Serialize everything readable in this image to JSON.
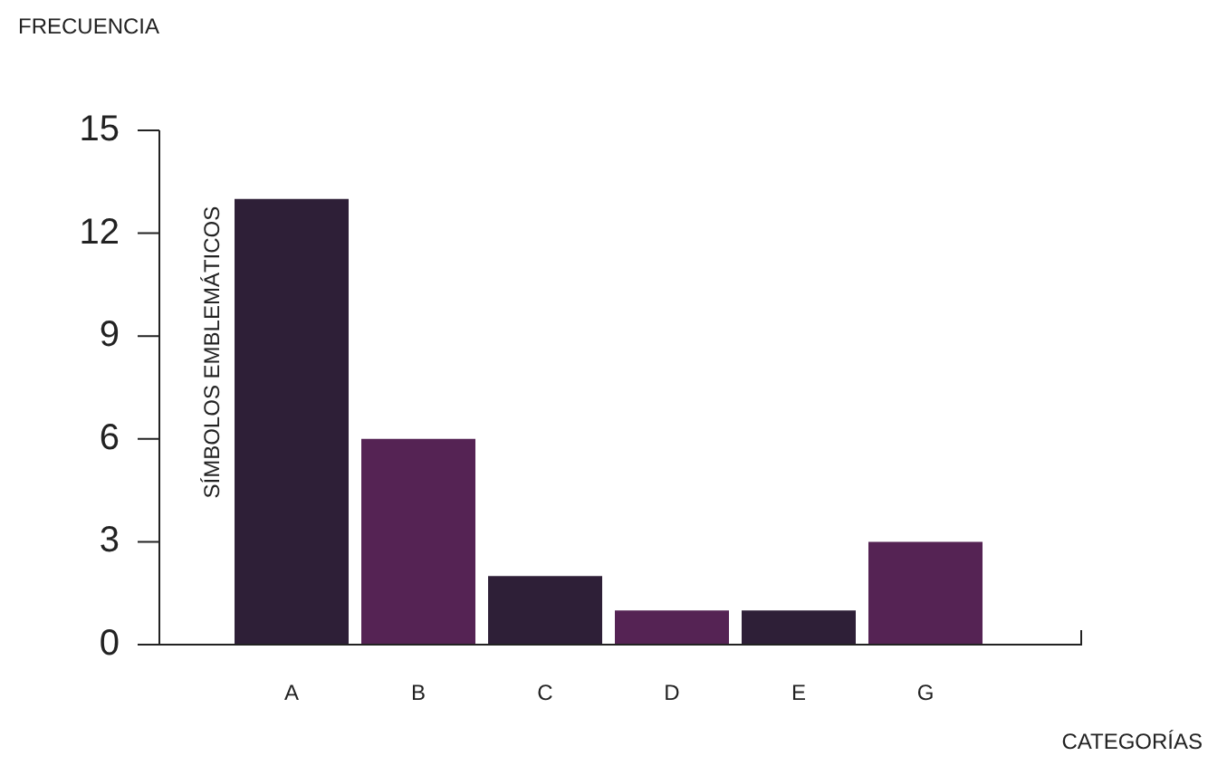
{
  "chart_data": {
    "type": "bar",
    "xlabel": "CATEGORÍAS",
    "ylabel": "FRECUENCIA",
    "categories": [
      "A",
      "B",
      "C",
      "D",
      "E",
      "G"
    ],
    "values": [
      13,
      6,
      2,
      1,
      1,
      3
    ],
    "colors": [
      "#2e1f37",
      "#552354",
      "#2e1f37",
      "#552354",
      "#2e1f37",
      "#552354"
    ],
    "ylim": [
      0,
      15
    ],
    "yticks": [
      0,
      3,
      6,
      9,
      12,
      15
    ],
    "grid": false,
    "annotations": [
      "SÍMBOLOS EMBLEMÁTICOS"
    ]
  }
}
